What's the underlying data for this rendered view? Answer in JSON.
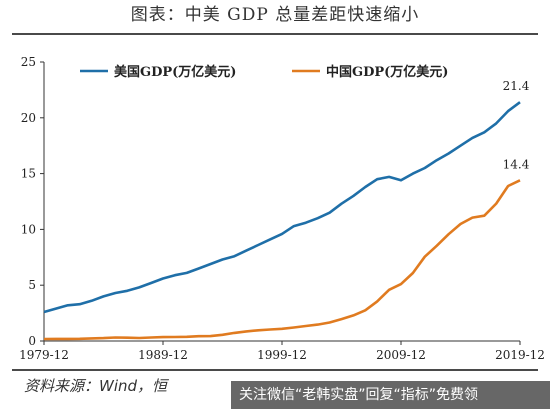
{
  "title": "图表：中美 GDP 总量差距快速缩小",
  "source": "资料来源：Wind，恒",
  "banner": "关注微信“老韩实盘”回复“指标”免费领",
  "chart_data": {
    "type": "line",
    "ylim": [
      0,
      25
    ],
    "yticks": [
      "0",
      "5",
      "10",
      "15",
      "20",
      "25"
    ],
    "xticks": [
      "1979-12",
      "1989-12",
      "1999-12",
      "2009-12",
      "2019-12"
    ],
    "grid": false,
    "legend_position": "top-left",
    "colors": {
      "us": "#1f6fa8",
      "china": "#e07b20"
    },
    "x": [
      1979,
      1980,
      1981,
      1982,
      1983,
      1984,
      1985,
      1986,
      1987,
      1988,
      1989,
      1990,
      1991,
      1992,
      1993,
      1994,
      1995,
      1996,
      1997,
      1998,
      1999,
      2000,
      2001,
      2002,
      2003,
      2004,
      2005,
      2006,
      2007,
      2008,
      2009,
      2010,
      2011,
      2012,
      2013,
      2014,
      2015,
      2016,
      2017,
      2018,
      2019
    ],
    "series": [
      {
        "name": "美国GDP(万亿美元)",
        "end_label": "21.4",
        "values": [
          2.6,
          2.9,
          3.2,
          3.3,
          3.6,
          4.0,
          4.3,
          4.5,
          4.8,
          5.2,
          5.6,
          5.9,
          6.1,
          6.5,
          6.9,
          7.3,
          7.6,
          8.1,
          8.6,
          9.1,
          9.6,
          10.3,
          10.6,
          11.0,
          11.5,
          12.3,
          13.0,
          13.8,
          14.5,
          14.7,
          14.4,
          15.0,
          15.5,
          16.2,
          16.8,
          17.5,
          18.2,
          18.7,
          19.5,
          20.6,
          21.4
        ]
      },
      {
        "name": "中国GDP(万亿美元)",
        "end_label": "14.4",
        "values": [
          0.18,
          0.19,
          0.19,
          0.2,
          0.23,
          0.26,
          0.31,
          0.3,
          0.27,
          0.31,
          0.35,
          0.36,
          0.38,
          0.43,
          0.44,
          0.56,
          0.73,
          0.86,
          0.96,
          1.03,
          1.09,
          1.21,
          1.34,
          1.47,
          1.66,
          1.96,
          2.29,
          2.75,
          3.55,
          4.59,
          5.1,
          6.09,
          7.55,
          8.53,
          9.57,
          10.48,
          11.06,
          11.23,
          12.31,
          13.89,
          14.4
        ]
      }
    ]
  }
}
